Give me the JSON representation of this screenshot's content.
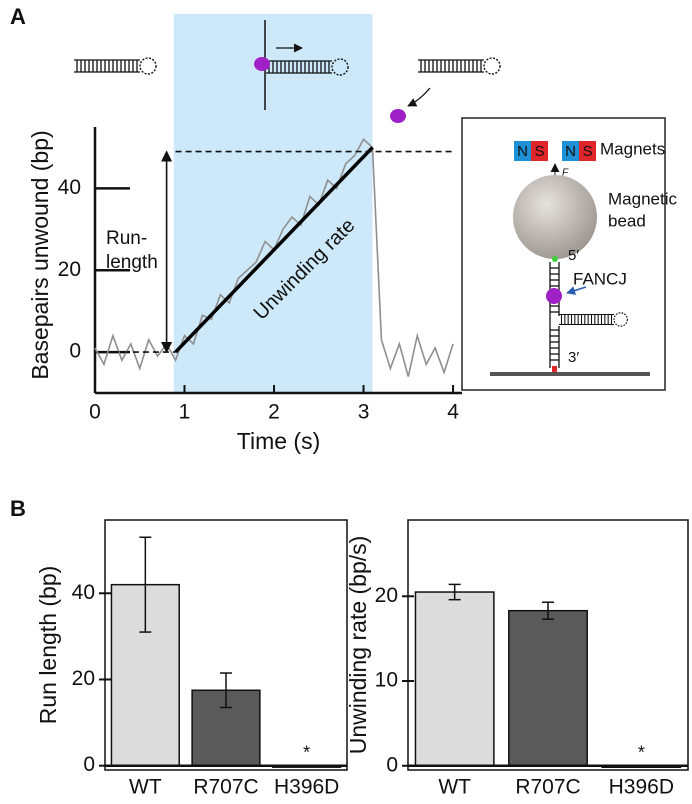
{
  "chart_data": [
    {
      "type": "line",
      "panel_label": "A",
      "xlabel": "Time (s)",
      "ylabel": "Basepairs unwound (bp)",
      "xlim": [
        0,
        4.1
      ],
      "ylim": [
        -10,
        55
      ],
      "xticks": [
        0,
        1,
        2,
        3,
        4
      ],
      "yticks": [
        0,
        20,
        40
      ],
      "shade": [
        0.88,
        3.1
      ],
      "shade_color": "#cde9f9",
      "series": [
        {
          "color": "#8f8f8f",
          "x": [
            0,
            0.1,
            0.2,
            0.3,
            0.4,
            0.5,
            0.6,
            0.7,
            0.8,
            0.9,
            1.0,
            1.1,
            1.2,
            1.3,
            1.4,
            1.5,
            1.6,
            1.7,
            1.8,
            1.9,
            2.0,
            2.1,
            2.2,
            2.3,
            2.4,
            2.5,
            2.6,
            2.7,
            2.8,
            2.9,
            3.0,
            3.1,
            3.2,
            3.3,
            3.4,
            3.5,
            3.6,
            3.7,
            3.8,
            3.9,
            4.0
          ],
          "values": [
            1,
            -3,
            4,
            -2,
            2,
            -4,
            3,
            -1,
            2,
            -2,
            4,
            2,
            9,
            8,
            14,
            12,
            18,
            20,
            22,
            27,
            25,
            30,
            33,
            31,
            38,
            36,
            42,
            40,
            46,
            48,
            52,
            50,
            3,
            -4,
            2,
            -6,
            4,
            -3,
            1,
            -5,
            2
          ]
        },
        {
          "color": "#000000",
          "x": [
            0.9,
            3.1
          ],
          "values": [
            0,
            50
          ]
        }
      ],
      "reference_lines": [
        {
          "y": 0,
          "x": [
            0.2,
            0.9
          ]
        },
        {
          "y": 49,
          "x": [
            0.9,
            4.0
          ]
        }
      ],
      "arrow": {
        "x": 0.8,
        "y": [
          0,
          49
        ]
      },
      "annotations": {
        "run_length": [
          "Run-",
          "length"
        ],
        "rate": "Unwinding rate"
      },
      "inset": {
        "magnet_n": "N",
        "magnet_s": "S",
        "magnets": "Magnets",
        "force": "F",
        "bead": [
          "Magnetic",
          "bead"
        ],
        "five": "5′",
        "fancj": "FANCJ",
        "three": "3′"
      }
    },
    {
      "type": "bar",
      "panel_label": "B",
      "ylabel": "Run length (bp)",
      "categories": [
        "WT",
        "R707C",
        "H396D"
      ],
      "values": [
        42,
        17.5,
        0
      ],
      "errors": [
        11,
        4,
        null
      ],
      "colors": [
        "#dcdcdc",
        "#5a5a5a",
        "#ffffff"
      ],
      "bar_annotations": [
        null,
        null,
        "*"
      ],
      "ylim": [
        -1,
        57
      ],
      "yticks": [
        0,
        20,
        40
      ]
    },
    {
      "type": "bar",
      "ylabel": "Unwinding rate (bp/s)",
      "categories": [
        "WT",
        "R707C",
        "H396D"
      ],
      "values": [
        20.5,
        18.3,
        0
      ],
      "errors": [
        0.9,
        1.0,
        null
      ],
      "colors": [
        "#dcdcdc",
        "#5a5a5a",
        "#ffffff"
      ],
      "bar_annotations": [
        null,
        null,
        "*"
      ],
      "ylim": [
        -0.5,
        29
      ],
      "yticks": [
        0,
        10,
        20
      ]
    }
  ]
}
